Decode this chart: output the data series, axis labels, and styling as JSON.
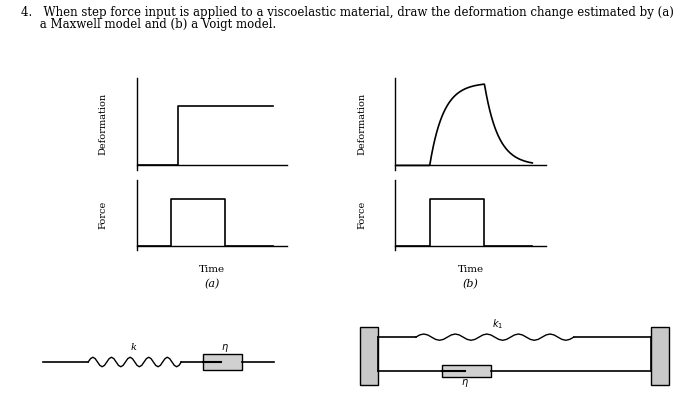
{
  "bg_color": "#ffffff",
  "text_color": "#000000",
  "title_line1": "4.   When step force input is applied to a viscoelastic material, draw the deformation change estimated by (a)",
  "title_line2": "     a Maxwell model and (b) a Voigt model.",
  "label_a": "(a)",
  "label_b": "(b)",
  "xlabel": "Time",
  "ylabel_deformation": "Deformation",
  "ylabel_force": "Force",
  "maxwell_def_t": [
    0,
    0.3,
    0.3,
    1.0
  ],
  "maxwell_def_d": [
    0,
    0,
    0.65,
    0.65
  ],
  "force_t": [
    0,
    0.25,
    0.25,
    0.65,
    0.65,
    1.0
  ],
  "force_f": [
    0,
    0,
    0.6,
    0.6,
    0,
    0
  ],
  "voigt_t_on": 0.25,
  "voigt_t_off": 0.65,
  "voigt_tau": 0.1,
  "voigt_amp": 0.9
}
